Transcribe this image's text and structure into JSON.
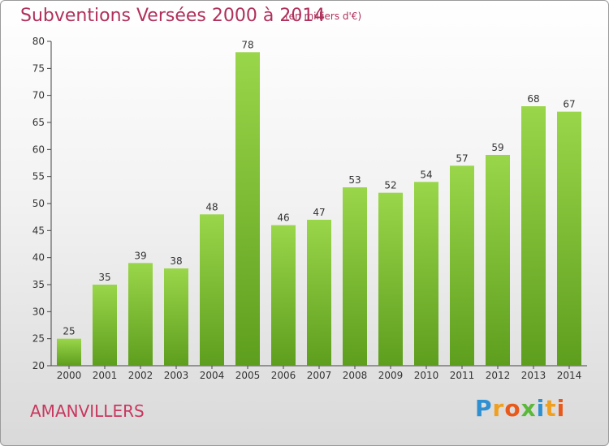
{
  "header": {
    "title": "Subventions Versées 2000 à 2014",
    "subtitle": "(en milliers d'€)"
  },
  "footer": {
    "place": "AMANVILLERS",
    "logo_letters": [
      "P",
      "r",
      "o",
      "x",
      "i",
      "t",
      "i"
    ],
    "logo_colors": [
      "#2e8fd1",
      "#f0a020",
      "#e85a1c",
      "#5cb83a",
      "#2e8fd1",
      "#f0a020",
      "#e85a1c"
    ]
  },
  "chart_data": {
    "type": "bar",
    "title": "Subventions Versées 2000 à 2014",
    "subtitle": "(en milliers d'€)",
    "xlabel": "",
    "ylabel": "",
    "categories": [
      "2000",
      "2001",
      "2002",
      "2003",
      "2004",
      "2005",
      "2006",
      "2007",
      "2008",
      "2009",
      "2010",
      "2011",
      "2012",
      "2013",
      "2014"
    ],
    "values": [
      25,
      35,
      39,
      38,
      48,
      78,
      46,
      47,
      53,
      52,
      54,
      57,
      59,
      68,
      67
    ],
    "ylim": [
      20,
      80
    ],
    "yticks": [
      20,
      25,
      30,
      35,
      40,
      45,
      50,
      55,
      60,
      65,
      70,
      75,
      80
    ],
    "grid": false,
    "bar_color": "#7dc232",
    "bar_color_dark": "#5a9e1c"
  }
}
